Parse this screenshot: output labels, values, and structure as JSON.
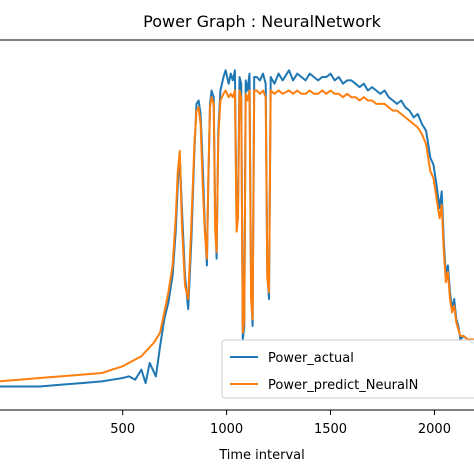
{
  "chart_data": {
    "type": "line",
    "title": "Power Graph : NeuralNetwork",
    "xlabel": "Time interval",
    "ylabel": "",
    "xlim": [
      -100,
      2200
    ],
    "ylim": [
      -0.05,
      1.05
    ],
    "x_ticks": [
      500,
      1000,
      1500,
      2000
    ],
    "grid": false,
    "legend_position": "lower-right",
    "series": [
      {
        "name": "Power_actual",
        "color": "#1f77b4",
        "points": [
          [
            -100,
            0.02
          ],
          [
            0,
            0.02
          ],
          [
            100,
            0.02
          ],
          [
            200,
            0.025
          ],
          [
            300,
            0.03
          ],
          [
            400,
            0.035
          ],
          [
            450,
            0.04
          ],
          [
            500,
            0.045
          ],
          [
            530,
            0.05
          ],
          [
            560,
            0.04
          ],
          [
            590,
            0.07
          ],
          [
            610,
            0.03
          ],
          [
            630,
            0.09
          ],
          [
            660,
            0.05
          ],
          [
            680,
            0.14
          ],
          [
            700,
            0.22
          ],
          [
            720,
            0.27
          ],
          [
            740,
            0.35
          ],
          [
            755,
            0.48
          ],
          [
            765,
            0.62
          ],
          [
            775,
            0.7
          ],
          [
            785,
            0.55
          ],
          [
            800,
            0.35
          ],
          [
            815,
            0.25
          ],
          [
            830,
            0.45
          ],
          [
            845,
            0.72
          ],
          [
            855,
            0.86
          ],
          [
            865,
            0.87
          ],
          [
            875,
            0.83
          ],
          [
            885,
            0.68
          ],
          [
            895,
            0.5
          ],
          [
            905,
            0.38
          ],
          [
            912,
            0.62
          ],
          [
            920,
            0.86
          ],
          [
            928,
            0.9
          ],
          [
            938,
            0.88
          ],
          [
            945,
            0.52
          ],
          [
            952,
            0.4
          ],
          [
            960,
            0.78
          ],
          [
            970,
            0.9
          ],
          [
            985,
            0.94
          ],
          [
            995,
            0.96
          ],
          [
            1010,
            0.92
          ],
          [
            1020,
            0.95
          ],
          [
            1030,
            0.93
          ],
          [
            1040,
            0.96
          ],
          [
            1048,
            0.5
          ],
          [
            1055,
            0.55
          ],
          [
            1062,
            0.94
          ],
          [
            1070,
            0.92
          ],
          [
            1078,
            0.16
          ],
          [
            1085,
            0.2
          ],
          [
            1092,
            0.93
          ],
          [
            1100,
            0.9
          ],
          [
            1110,
            0.95
          ],
          [
            1118,
            0.3
          ],
          [
            1125,
            0.2
          ],
          [
            1133,
            0.94
          ],
          [
            1145,
            0.94
          ],
          [
            1160,
            0.93
          ],
          [
            1175,
            0.95
          ],
          [
            1188,
            0.92
          ],
          [
            1196,
            0.36
          ],
          [
            1204,
            0.28
          ],
          [
            1212,
            0.94
          ],
          [
            1230,
            0.92
          ],
          [
            1250,
            0.95
          ],
          [
            1270,
            0.93
          ],
          [
            1300,
            0.96
          ],
          [
            1320,
            0.93
          ],
          [
            1340,
            0.95
          ],
          [
            1360,
            0.94
          ],
          [
            1380,
            0.93
          ],
          [
            1400,
            0.95
          ],
          [
            1420,
            0.94
          ],
          [
            1440,
            0.93
          ],
          [
            1460,
            0.94
          ],
          [
            1480,
            0.94
          ],
          [
            1500,
            0.95
          ],
          [
            1520,
            0.93
          ],
          [
            1540,
            0.94
          ],
          [
            1560,
            0.92
          ],
          [
            1580,
            0.93
          ],
          [
            1600,
            0.93
          ],
          [
            1620,
            0.92
          ],
          [
            1640,
            0.91
          ],
          [
            1660,
            0.92
          ],
          [
            1680,
            0.9
          ],
          [
            1700,
            0.91
          ],
          [
            1720,
            0.9
          ],
          [
            1740,
            0.89
          ],
          [
            1760,
            0.9
          ],
          [
            1780,
            0.88
          ],
          [
            1800,
            0.87
          ],
          [
            1820,
            0.86
          ],
          [
            1840,
            0.87
          ],
          [
            1860,
            0.85
          ],
          [
            1880,
            0.84
          ],
          [
            1900,
            0.82
          ],
          [
            1920,
            0.83
          ],
          [
            1940,
            0.8
          ],
          [
            1960,
            0.78
          ],
          [
            1980,
            0.7
          ],
          [
            1995,
            0.68
          ],
          [
            2010,
            0.62
          ],
          [
            2025,
            0.55
          ],
          [
            2035,
            0.6
          ],
          [
            2045,
            0.45
          ],
          [
            2055,
            0.35
          ],
          [
            2065,
            0.38
          ],
          [
            2075,
            0.3
          ],
          [
            2085,
            0.25
          ],
          [
            2095,
            0.28
          ],
          [
            2105,
            0.22
          ],
          [
            2115,
            0.2
          ],
          [
            2125,
            0.16
          ],
          [
            2140,
            0.17
          ],
          [
            2160,
            0.16
          ],
          [
            2180,
            0.15
          ],
          [
            2200,
            0.15
          ]
        ]
      },
      {
        "name": "Power_predict_NeuralN",
        "color": "#ff7f0e",
        "points": [
          [
            -100,
            0.035
          ],
          [
            0,
            0.04
          ],
          [
            100,
            0.045
          ],
          [
            200,
            0.05
          ],
          [
            300,
            0.055
          ],
          [
            400,
            0.06
          ],
          [
            450,
            0.07
          ],
          [
            500,
            0.08
          ],
          [
            530,
            0.09
          ],
          [
            560,
            0.1
          ],
          [
            590,
            0.11
          ],
          [
            620,
            0.13
          ],
          [
            650,
            0.15
          ],
          [
            680,
            0.18
          ],
          [
            700,
            0.24
          ],
          [
            720,
            0.3
          ],
          [
            740,
            0.38
          ],
          [
            755,
            0.52
          ],
          [
            765,
            0.66
          ],
          [
            775,
            0.72
          ],
          [
            785,
            0.5
          ],
          [
            800,
            0.32
          ],
          [
            815,
            0.28
          ],
          [
            830,
            0.5
          ],
          [
            845,
            0.74
          ],
          [
            855,
            0.84
          ],
          [
            865,
            0.85
          ],
          [
            875,
            0.8
          ],
          [
            885,
            0.62
          ],
          [
            895,
            0.48
          ],
          [
            905,
            0.4
          ],
          [
            912,
            0.64
          ],
          [
            920,
            0.85
          ],
          [
            928,
            0.88
          ],
          [
            938,
            0.86
          ],
          [
            945,
            0.48
          ],
          [
            952,
            0.42
          ],
          [
            960,
            0.76
          ],
          [
            970,
            0.87
          ],
          [
            985,
            0.89
          ],
          [
            995,
            0.9
          ],
          [
            1010,
            0.88
          ],
          [
            1020,
            0.89
          ],
          [
            1030,
            0.88
          ],
          [
            1040,
            0.9
          ],
          [
            1048,
            0.48
          ],
          [
            1055,
            0.52
          ],
          [
            1062,
            0.9
          ],
          [
            1070,
            0.88
          ],
          [
            1078,
            0.18
          ],
          [
            1085,
            0.22
          ],
          [
            1092,
            0.89
          ],
          [
            1100,
            0.87
          ],
          [
            1110,
            0.9
          ],
          [
            1118,
            0.28
          ],
          [
            1125,
            0.22
          ],
          [
            1133,
            0.9
          ],
          [
            1145,
            0.9
          ],
          [
            1160,
            0.89
          ],
          [
            1175,
            0.9
          ],
          [
            1188,
            0.88
          ],
          [
            1196,
            0.34
          ],
          [
            1204,
            0.3
          ],
          [
            1212,
            0.9
          ],
          [
            1230,
            0.89
          ],
          [
            1250,
            0.9
          ],
          [
            1270,
            0.89
          ],
          [
            1300,
            0.9
          ],
          [
            1320,
            0.89
          ],
          [
            1340,
            0.9
          ],
          [
            1360,
            0.89
          ],
          [
            1380,
            0.89
          ],
          [
            1400,
            0.9
          ],
          [
            1420,
            0.89
          ],
          [
            1440,
            0.89
          ],
          [
            1460,
            0.9
          ],
          [
            1480,
            0.89
          ],
          [
            1500,
            0.9
          ],
          [
            1520,
            0.89
          ],
          [
            1540,
            0.89
          ],
          [
            1560,
            0.88
          ],
          [
            1580,
            0.89
          ],
          [
            1600,
            0.88
          ],
          [
            1620,
            0.88
          ],
          [
            1640,
            0.87
          ],
          [
            1660,
            0.88
          ],
          [
            1680,
            0.87
          ],
          [
            1700,
            0.87
          ],
          [
            1720,
            0.86
          ],
          [
            1740,
            0.86
          ],
          [
            1760,
            0.86
          ],
          [
            1780,
            0.85
          ],
          [
            1800,
            0.84
          ],
          [
            1820,
            0.84
          ],
          [
            1840,
            0.83
          ],
          [
            1860,
            0.82
          ],
          [
            1880,
            0.81
          ],
          [
            1900,
            0.8
          ],
          [
            1920,
            0.79
          ],
          [
            1940,
            0.77
          ],
          [
            1960,
            0.74
          ],
          [
            1980,
            0.66
          ],
          [
            1995,
            0.64
          ],
          [
            2010,
            0.58
          ],
          [
            2025,
            0.52
          ],
          [
            2035,
            0.56
          ],
          [
            2045,
            0.42
          ],
          [
            2055,
            0.33
          ],
          [
            2065,
            0.36
          ],
          [
            2075,
            0.28
          ],
          [
            2085,
            0.24
          ],
          [
            2095,
            0.26
          ],
          [
            2105,
            0.21
          ],
          [
            2115,
            0.19
          ],
          [
            2125,
            0.17
          ],
          [
            2140,
            0.17
          ],
          [
            2160,
            0.16
          ],
          [
            2180,
            0.16
          ],
          [
            2200,
            0.16
          ]
        ]
      }
    ]
  }
}
